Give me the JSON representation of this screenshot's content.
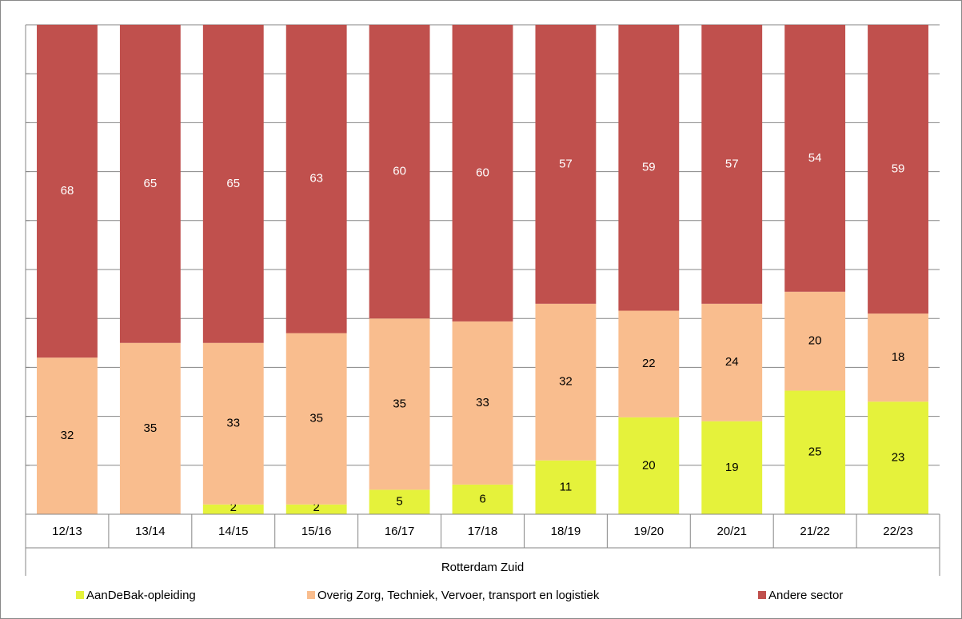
{
  "chart_data": {
    "type": "bar",
    "stacked": "percent",
    "categories": [
      "12/13",
      "13/14",
      "14/15",
      "15/16",
      "16/17",
      "17/18",
      "18/19",
      "19/20",
      "20/21",
      "21/22",
      "22/23"
    ],
    "group": "Rotterdam Zuid",
    "series": [
      {
        "name": "AanDeBak-opleiding",
        "color": "#e5f23b",
        "label_color": "#000000",
        "values": [
          null,
          null,
          2,
          2,
          5,
          6,
          11,
          20,
          19,
          25,
          23
        ]
      },
      {
        "name": "Overig Zorg, Techniek, Vervoer, transport en logistiek",
        "color": "#f9bd8e",
        "label_color": "#000000",
        "values": [
          32,
          35,
          33,
          35,
          35,
          33,
          32,
          22,
          24,
          20,
          18
        ]
      },
      {
        "name": "Andere sector",
        "color": "#c0504d",
        "label_color": "#ffffff",
        "values": [
          68,
          65,
          65,
          63,
          60,
          60,
          57,
          59,
          57,
          54,
          59
        ]
      }
    ],
    "ylim": [
      0,
      100
    ],
    "yticks": [
      0,
      10,
      20,
      30,
      40,
      50,
      60,
      70,
      80,
      90,
      100
    ],
    "grid": true,
    "legend": "bottom"
  }
}
